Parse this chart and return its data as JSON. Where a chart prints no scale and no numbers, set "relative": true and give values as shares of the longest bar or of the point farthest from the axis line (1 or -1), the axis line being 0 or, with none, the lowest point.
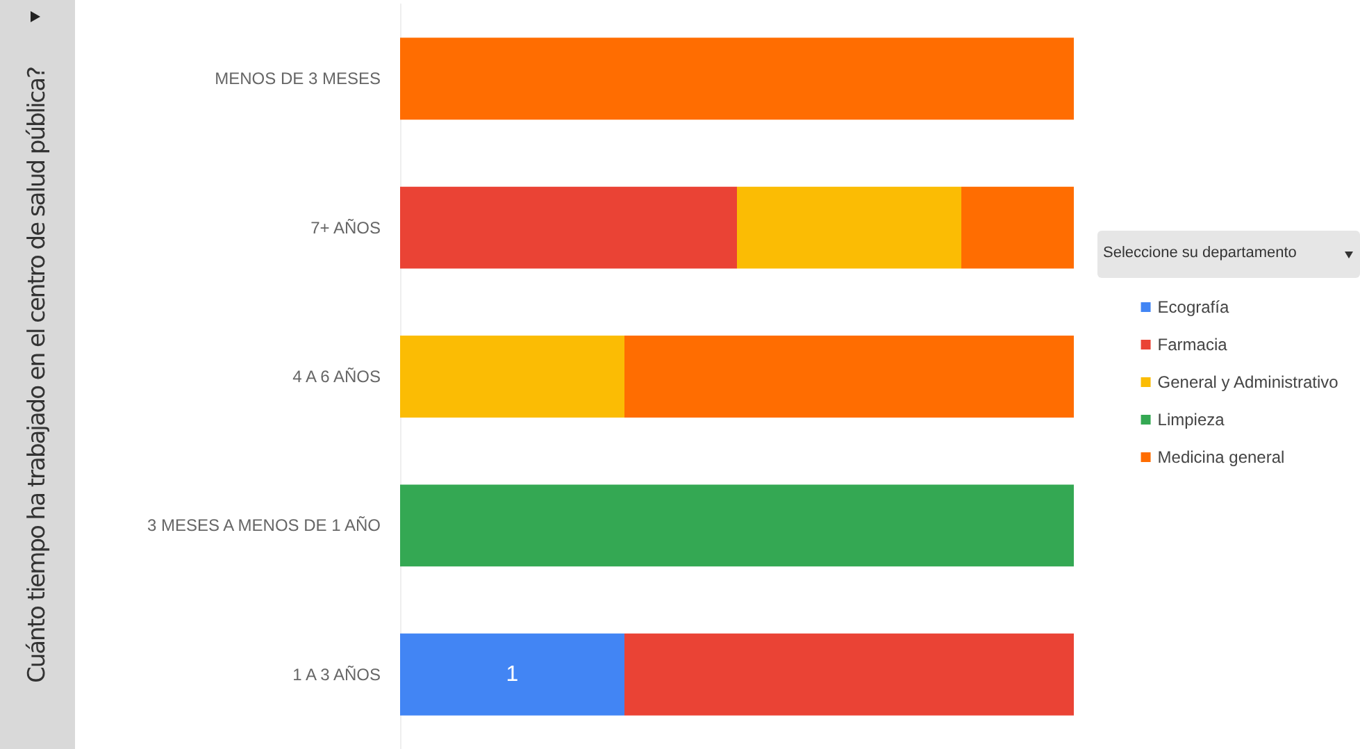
{
  "chart_data": {
    "type": "bar",
    "orientation": "horizontal",
    "stacked": true,
    "relative": true,
    "ylabel": "Cuánto tiempo ha trabajado en el centro de salud pública?",
    "legend_title": "Seleccione su departamento",
    "legend": "right",
    "categories": [
      "MENOS DE 3 MESES",
      "7+ AÑOS",
      "4 A 6 AÑOS",
      "3 MESES A MENOS DE 1 AÑO",
      "1 A 3 AÑOS"
    ],
    "series": [
      {
        "name": "Ecografía",
        "color": "#4285f4",
        "values": [
          null,
          null,
          null,
          null,
          0.333
        ]
      },
      {
        "name": "Farmacia",
        "color": "#ea4335",
        "values": [
          null,
          0.5,
          null,
          null,
          0.667
        ]
      },
      {
        "name": "General y Administrativo",
        "color": "#fbbc04",
        "values": [
          null,
          0.333,
          0.333,
          null,
          null
        ]
      },
      {
        "name": "Limpieza",
        "color": "#34a853",
        "values": [
          null,
          null,
          null,
          1,
          null
        ]
      },
      {
        "name": "Medicina general",
        "color": "#ff6d01",
        "values": [
          1,
          0.167,
          0.667,
          null,
          null
        ]
      }
    ],
    "annotations": [
      "1"
    ]
  }
}
